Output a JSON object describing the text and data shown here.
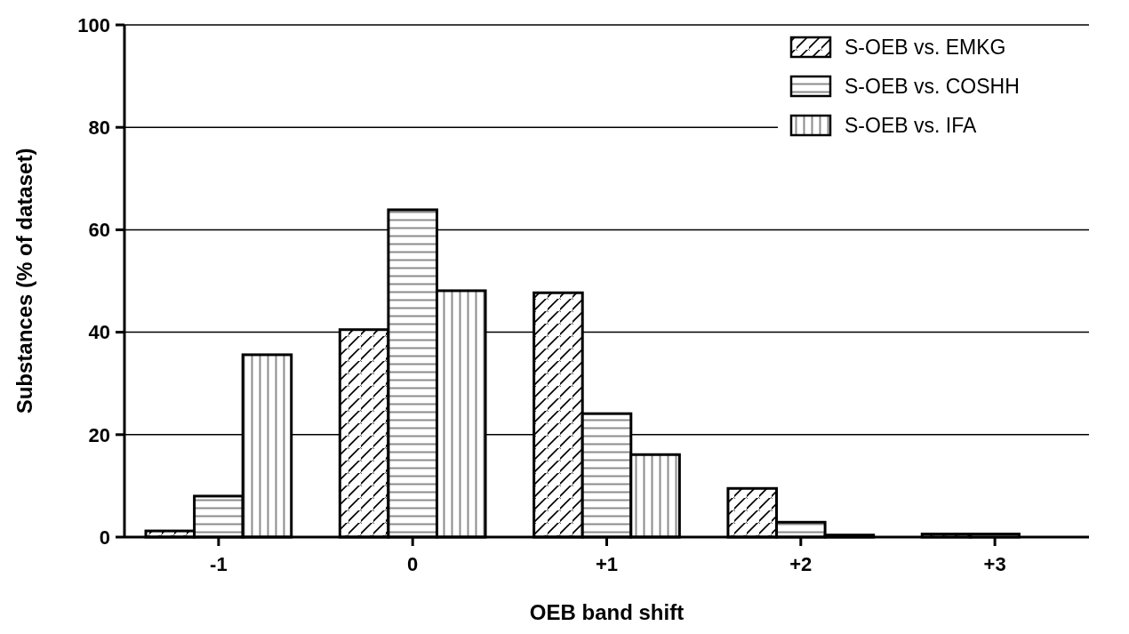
{
  "chart_data": {
    "type": "bar",
    "xlabel": "OEB band shift",
    "ylabel": "Substances (% of dataset)",
    "categories": [
      "-1",
      "0",
      "+1",
      "+2",
      "+3"
    ],
    "ylim": [
      0,
      100
    ],
    "yticks": [
      0,
      20,
      40,
      60,
      80,
      100
    ],
    "grid": "y",
    "legend": "top right",
    "series": [
      {
        "name": "S-OEB vs. EMKG",
        "color": "#000000",
        "values": [
          1.2,
          40.5,
          47.7,
          9.5,
          0.6
        ]
      },
      {
        "name": "S-OEB vs. COSHH",
        "color": "#000000",
        "values": [
          8,
          63.9,
          24.1,
          2.9,
          0.6
        ]
      },
      {
        "name": "S-OEB vs. IFA",
        "color": "#000000",
        "values": [
          35.6,
          48.1,
          16.1,
          0.4,
          0
        ]
      }
    ]
  }
}
